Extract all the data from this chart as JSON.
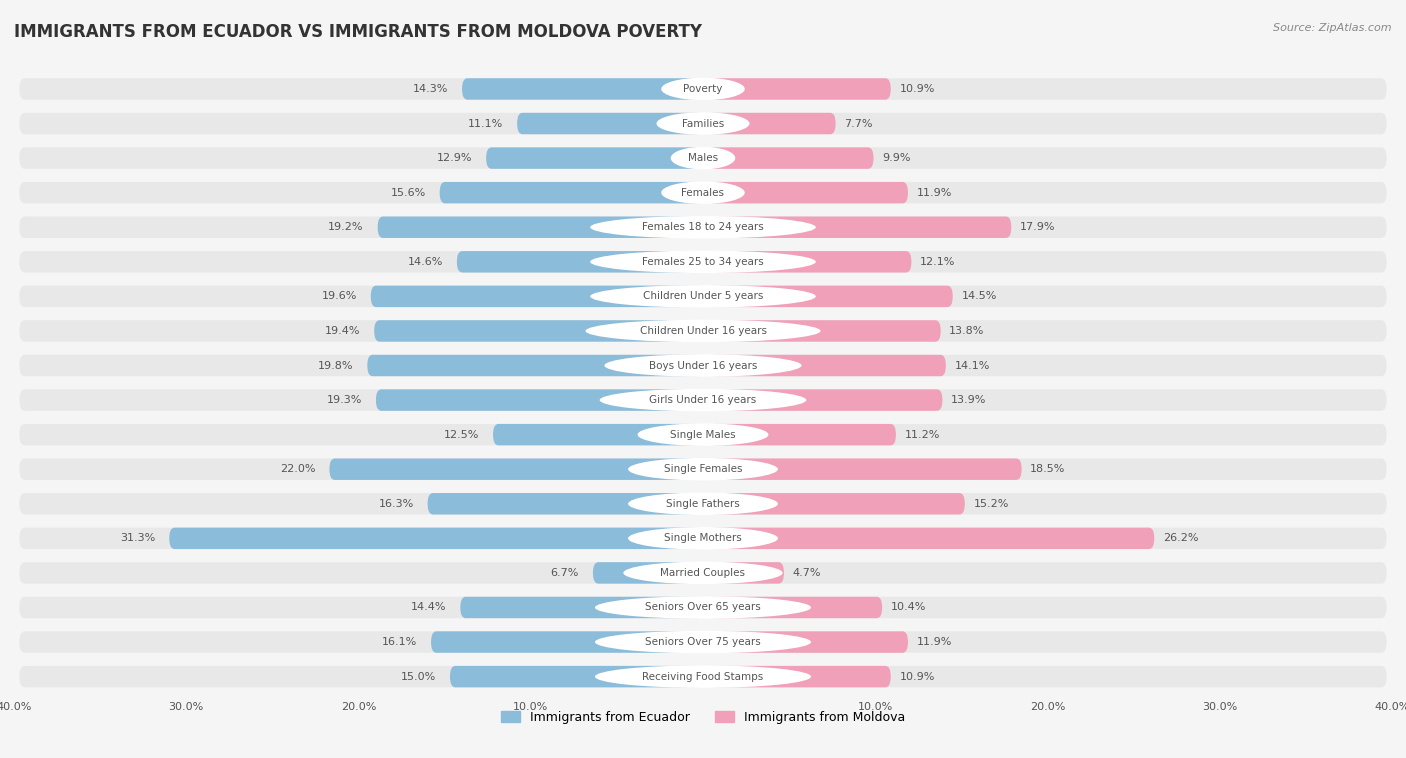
{
  "title": "IMMIGRANTS FROM ECUADOR VS IMMIGRANTS FROM MOLDOVA POVERTY",
  "source": "Source: ZipAtlas.com",
  "categories": [
    "Poverty",
    "Families",
    "Males",
    "Females",
    "Females 18 to 24 years",
    "Females 25 to 34 years",
    "Children Under 5 years",
    "Children Under 16 years",
    "Boys Under 16 years",
    "Girls Under 16 years",
    "Single Males",
    "Single Females",
    "Single Fathers",
    "Single Mothers",
    "Married Couples",
    "Seniors Over 65 years",
    "Seniors Over 75 years",
    "Receiving Food Stamps"
  ],
  "ecuador_values": [
    14.3,
    11.1,
    12.9,
    15.6,
    19.2,
    14.6,
    19.6,
    19.4,
    19.8,
    19.3,
    12.5,
    22.0,
    16.3,
    31.3,
    6.7,
    14.4,
    16.1,
    15.0
  ],
  "moldova_values": [
    10.9,
    7.7,
    9.9,
    11.9,
    17.9,
    12.1,
    14.5,
    13.8,
    14.1,
    13.9,
    11.2,
    18.5,
    15.2,
    26.2,
    4.7,
    10.4,
    11.9,
    10.9
  ],
  "ecuador_color": "#8BBCDA",
  "moldova_color": "#F0A0B8",
  "row_bg_color": "#E8E8E8",
  "gap_color": "#F5F5F5",
  "label_bg_color": "#FFFFFF",
  "label_text_color": "#555555",
  "value_text_color": "#555555",
  "axis_max": 40.0,
  "legend_ecuador": "Immigrants from Ecuador",
  "legend_moldova": "Immigrants from Moldova",
  "title_fontsize": 12,
  "source_fontsize": 8,
  "value_fontsize": 8,
  "category_fontsize": 7.5
}
